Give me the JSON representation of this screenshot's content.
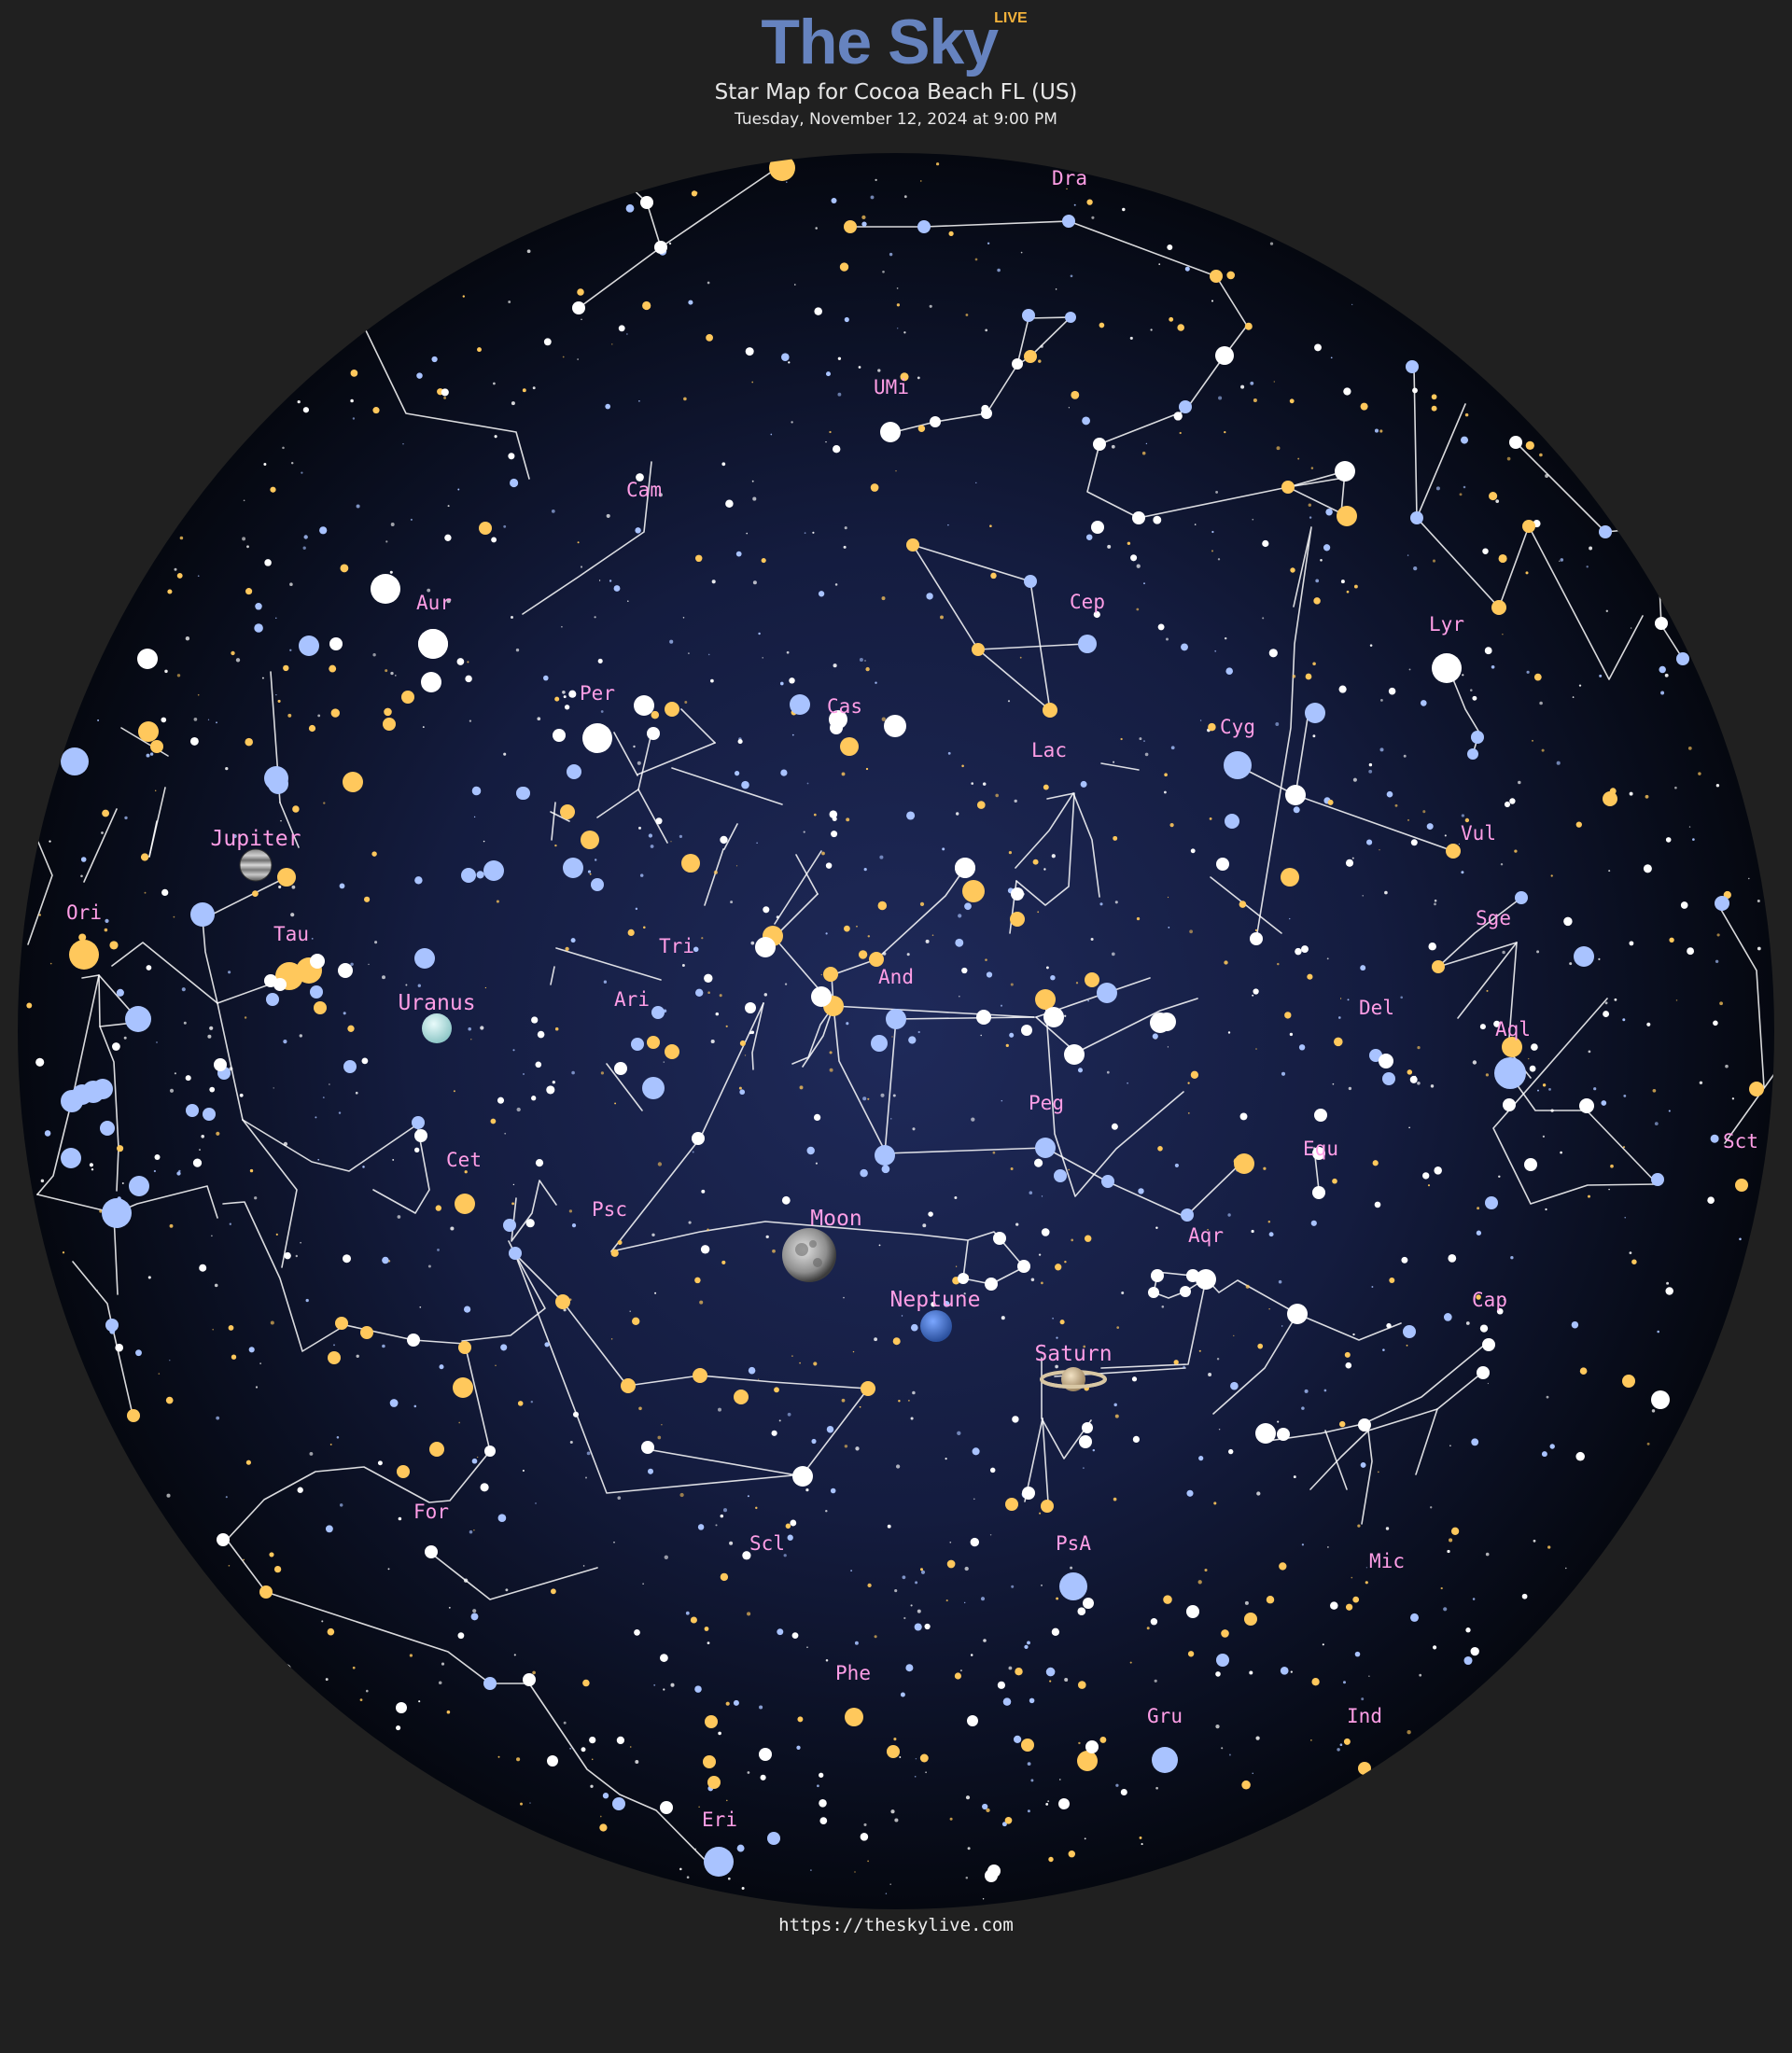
{
  "header": {
    "brand": "The Sky",
    "brand_badge": "LIVE",
    "subtitle": "Star Map for Cocoa Beach FL (US)",
    "datetime": "Tuesday, November 12, 2024 at 9:00 PM"
  },
  "footer": {
    "url": "https://theskylive.com"
  },
  "colors": {
    "page_bg": "#202020",
    "sky_center": "#1f2a5a",
    "sky_edge": "#050810",
    "label": "#ff9ee6",
    "line": "#ffffff",
    "star_orange": "#ffc85c",
    "star_blue": "#a9c3ff",
    "star_white": "#ffffff"
  },
  "constellations": [
    {
      "name": "Dra",
      "label": "Dra"
    },
    {
      "name": "UMi",
      "label": "UMi"
    },
    {
      "name": "Cam",
      "label": "Cam"
    },
    {
      "name": "Cep",
      "label": "Cep"
    },
    {
      "name": "Aur",
      "label": "Aur"
    },
    {
      "name": "Lyr",
      "label": "Lyr"
    },
    {
      "name": "Per",
      "label": "Per"
    },
    {
      "name": "Cas",
      "label": "Cas"
    },
    {
      "name": "Cyg",
      "label": "Cyg"
    },
    {
      "name": "Lac",
      "label": "Lac"
    },
    {
      "name": "Vul",
      "label": "Vul"
    },
    {
      "name": "Sge",
      "label": "Sge"
    },
    {
      "name": "Ori",
      "label": "Ori"
    },
    {
      "name": "Tau",
      "label": "Tau"
    },
    {
      "name": "Tri",
      "label": "Tri"
    },
    {
      "name": "And",
      "label": "And"
    },
    {
      "name": "Ari",
      "label": "Ari"
    },
    {
      "name": "Del",
      "label": "Del"
    },
    {
      "name": "Aql",
      "label": "Aql"
    },
    {
      "name": "Peg",
      "label": "Peg"
    },
    {
      "name": "Cet",
      "label": "Cet"
    },
    {
      "name": "Equ",
      "label": "Equ"
    },
    {
      "name": "Sct",
      "label": "Sct"
    },
    {
      "name": "Psc",
      "label": "Psc"
    },
    {
      "name": "Aqr",
      "label": "Aqr"
    },
    {
      "name": "Cap",
      "label": "Cap"
    },
    {
      "name": "For",
      "label": "For"
    },
    {
      "name": "Scl",
      "label": "Scl"
    },
    {
      "name": "PsA",
      "label": "PsA"
    },
    {
      "name": "Mic",
      "label": "Mic"
    },
    {
      "name": "Phe",
      "label": "Phe"
    },
    {
      "name": "Gru",
      "label": "Gru"
    },
    {
      "name": "Ind",
      "label": "Ind"
    },
    {
      "name": "Eri",
      "label": "Eri"
    }
  ],
  "bodies": [
    {
      "name": "Jupiter",
      "label": "Jupiter",
      "icon": "jupiter-icon"
    },
    {
      "name": "Uranus",
      "label": "Uranus",
      "icon": "uranus-icon"
    },
    {
      "name": "Moon",
      "label": "Moon",
      "icon": "moon-icon"
    },
    {
      "name": "Neptune",
      "label": "Neptune",
      "icon": "neptune-icon"
    },
    {
      "name": "Saturn",
      "label": "Saturn",
      "icon": "saturn-icon"
    }
  ]
}
